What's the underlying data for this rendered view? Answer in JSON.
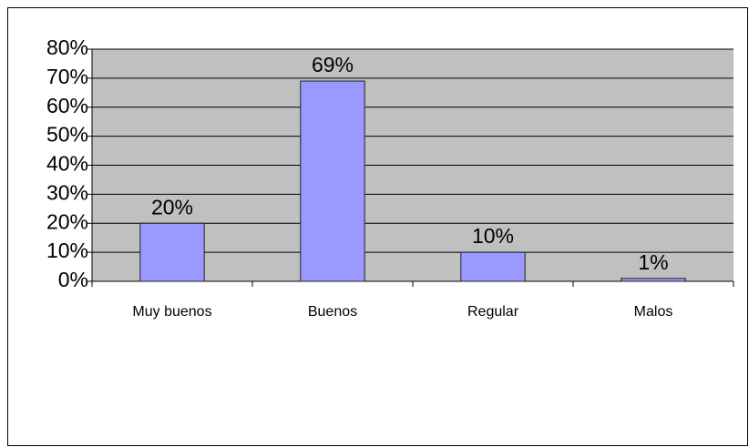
{
  "chart_data": {
    "type": "bar",
    "categories": [
      "Muy buenos",
      "Buenos",
      "Regular",
      "Malos"
    ],
    "values": [
      20,
      69,
      10,
      1
    ],
    "value_labels": [
      "20%",
      "69%",
      "10%",
      "1%"
    ],
    "color": "#9999ff",
    "ylim": [
      0,
      80
    ],
    "yticks": [
      {
        "value": 0,
        "label": "0%"
      },
      {
        "value": 10,
        "label": "10%"
      },
      {
        "value": 20,
        "label": "20%"
      },
      {
        "value": 30,
        "label": "30%"
      },
      {
        "value": 40,
        "label": "40%"
      },
      {
        "value": 50,
        "label": "50%"
      },
      {
        "value": 60,
        "label": "60%"
      },
      {
        "value": 70,
        "label": "70%"
      },
      {
        "value": 80,
        "label": "80%"
      }
    ],
    "grid": true
  }
}
